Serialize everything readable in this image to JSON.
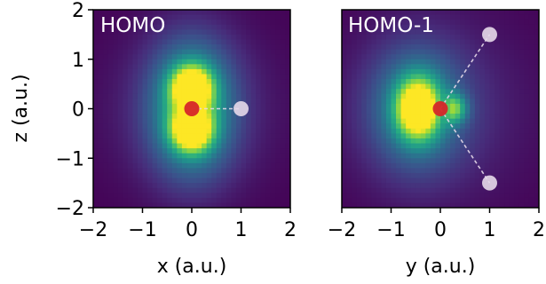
{
  "chart_data": [
    {
      "type": "heatmap",
      "title": "HOMO",
      "xlabel": "x (a.u.)",
      "ylabel": "z (a.u.)",
      "xlim": [
        -2,
        2
      ],
      "ylim": [
        -2,
        2
      ],
      "xticks": [
        -2,
        -1,
        0,
        1,
        2
      ],
      "yticks": [
        -2,
        -1,
        0,
        1,
        2
      ],
      "xtick_labels": [
        "−2",
        "−1",
        "0",
        "1",
        "2"
      ],
      "ytick_labels": [
        "−2",
        "−1",
        "0",
        "1",
        "2"
      ],
      "colormap": "viridis",
      "orbital": "p_z lobes along z around nucleus",
      "atoms": [
        {
          "element": "heavy",
          "x": 0.0,
          "y": 0.0,
          "color": "#d62728"
        },
        {
          "element": "H",
          "x": 1.0,
          "y": 0.0,
          "color": "#e6d9e9"
        }
      ],
      "bonds": [
        [
          0,
          1
        ]
      ]
    },
    {
      "type": "heatmap",
      "title": "HOMO-1",
      "xlabel": "y (a.u.)",
      "ylabel": "",
      "xlim": [
        -2,
        2
      ],
      "ylim": [
        -2,
        2
      ],
      "xticks": [
        -2,
        -1,
        0,
        1,
        2
      ],
      "xtick_labels": [
        "−2",
        "−1",
        "0",
        "1",
        "2"
      ],
      "colormap": "viridis",
      "orbital": "lobe on negative y side of nucleus",
      "atoms": [
        {
          "element": "heavy",
          "x": 0.0,
          "y": 0.0,
          "color": "#d62728"
        },
        {
          "element": "H",
          "x": 1.0,
          "y": 1.5,
          "color": "#e6d9e9"
        },
        {
          "element": "H",
          "x": 1.0,
          "y": -1.5,
          "color": "#e6d9e9"
        }
      ],
      "bonds": [
        [
          0,
          1
        ],
        [
          0,
          2
        ]
      ]
    }
  ],
  "colors": {
    "background": "#440154",
    "bond": "#e6d9e9",
    "nucleus": "#d62728",
    "hydrogen": "#e6d9e9"
  }
}
